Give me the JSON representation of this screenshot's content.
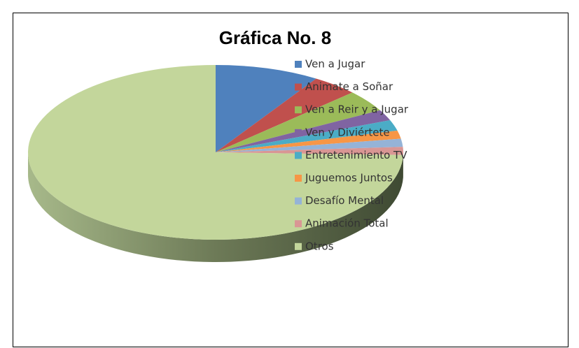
{
  "chart_data": {
    "type": "pie",
    "title": "Gráfica No. 8",
    "categories": [
      "Ven a Jugar",
      "Animate a Soñar",
      "Ven a Reir y a Jugar",
      "Ven y Diviértete",
      "Entretenimiento TV",
      "Juguemos Juntos",
      "Desafío Mental",
      "Animación Total",
      "Otros"
    ],
    "values": [
      9,
      4,
      4,
      2,
      2,
      1.5,
      1.5,
      1.5,
      74.5
    ],
    "colors": [
      "#4f81bd",
      "#c0504d",
      "#9bbb59",
      "#8064a2",
      "#4bacc6",
      "#f79646",
      "#95b3d7",
      "#d99694",
      "#c3d69b"
    ],
    "legend": "right"
  }
}
